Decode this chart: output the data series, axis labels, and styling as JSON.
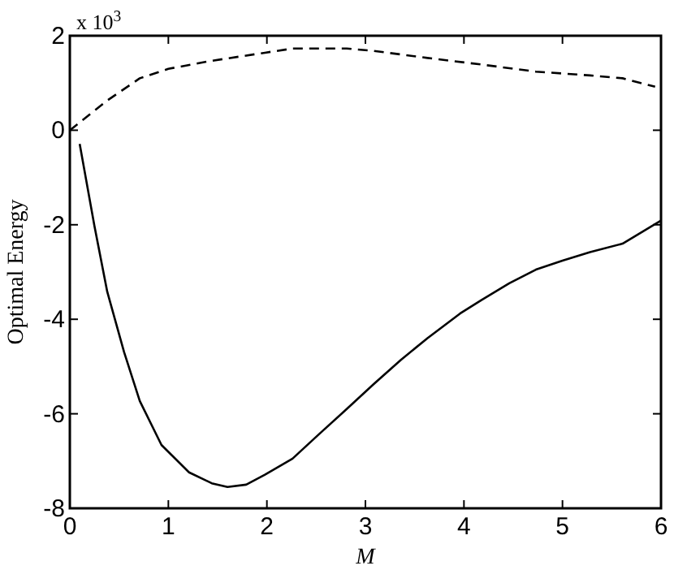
{
  "chart_data": {
    "type": "line",
    "xlabel": "M",
    "ylabel": "Optimal Energy",
    "annotations": [
      "x 10$^{3}$"
    ],
    "xlim": [
      0,
      6
    ],
    "xticks": [
      0,
      1,
      2,
      3,
      4,
      5,
      6
    ],
    "ylim": [
      -8,
      2
    ],
    "yticks": [
      -8,
      -6,
      -4,
      -2,
      0,
      2
    ],
    "grid": false,
    "marker": "none",
    "series": [
      {
        "color": "#000000",
        "line_style": "solid",
        "x": [
          0.1,
          0.25,
          0.38,
          0.55,
          0.71,
          0.93,
          1.21,
          1.44,
          1.6,
          1.79,
          1.98,
          2.26,
          2.53,
          2.81,
          3.08,
          3.36,
          3.63,
          3.96,
          4.18,
          4.46,
          4.73,
          5.0,
          5.28,
          5.61,
          6.0
        ],
        "values": [
          -0.29,
          -2.03,
          -3.42,
          -4.69,
          -5.73,
          -6.66,
          -7.24,
          -7.47,
          -7.55,
          -7.5,
          -7.29,
          -6.95,
          -6.43,
          -5.9,
          -5.38,
          -4.86,
          -4.4,
          -3.88,
          -3.59,
          -3.24,
          -2.95,
          -2.76,
          -2.58,
          -2.4,
          -1.91
        ]
      },
      {
        "color": "#000000",
        "line_style": "dashed",
        "x": [
          0,
          0.38,
          0.71,
          1.0,
          1.44,
          1.98,
          2.26,
          2.81,
          3.08,
          3.63,
          4.18,
          4.73,
          5.28,
          5.61,
          5.94
        ],
        "values": [
          0,
          0.63,
          1.1,
          1.3,
          1.47,
          1.64,
          1.73,
          1.73,
          1.68,
          1.53,
          1.39,
          1.24,
          1.16,
          1.1,
          0.92
        ]
      }
    ]
  }
}
